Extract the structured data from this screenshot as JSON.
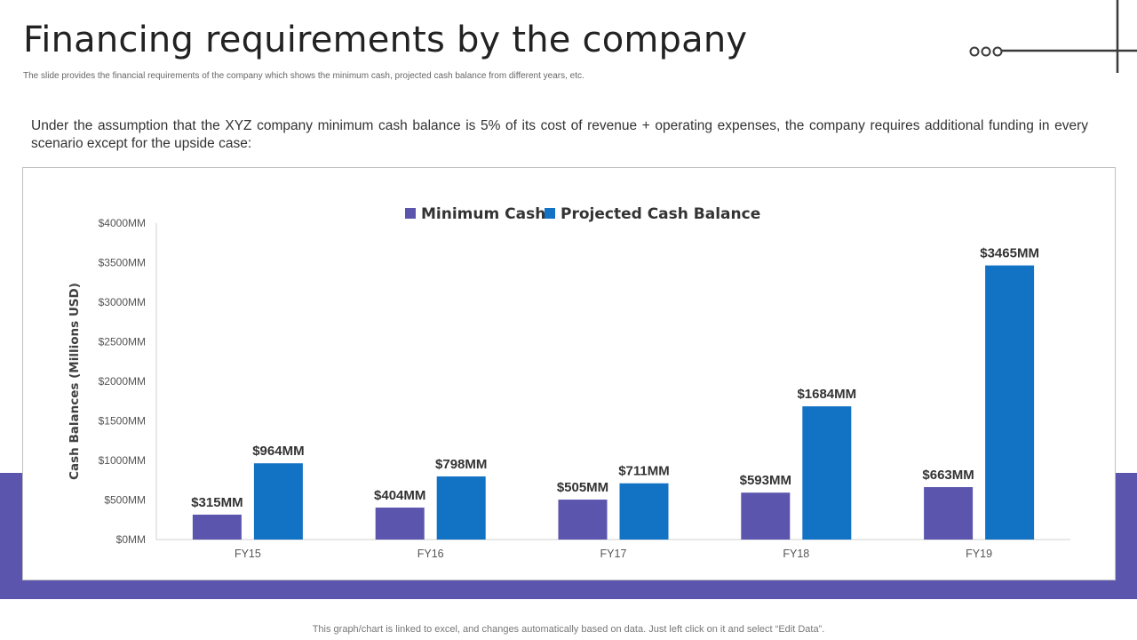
{
  "slide": {
    "title": "Financing requirements by the company",
    "subtitle": "The slide provides the financial requirements of the company which shows the minimum  cash, projected cash balance from different years, etc.",
    "intro": "Under the assumption that the XYZ company minimum cash balance is 5% of its cost of revenue + operating expenses, the company requires additional funding in every scenario except for the upside case:",
    "footer": "This graph/chart is linked to excel,  and changes automatically based on data. Just left click on it and select “Edit Data”."
  },
  "colors": {
    "minimum_cash": "#5b55ad",
    "projected_cash_balance": "#1272c4",
    "band": "#5b55ad"
  },
  "chart_data": {
    "type": "bar",
    "categories": [
      "FY15",
      "FY16",
      "FY17",
      "FY18",
      "FY19"
    ],
    "series": [
      {
        "name": "Minimum Cash",
        "values": [
          315,
          404,
          505,
          593,
          663
        ],
        "labels": [
          "$315MM",
          "$404MM",
          "$505MM",
          "$593MM",
          "$663MM"
        ]
      },
      {
        "name": "Projected Cash Balance",
        "values": [
          964,
          798,
          711,
          1684,
          3465
        ],
        "labels": [
          "$964MM",
          "$798MM",
          "$711MM",
          "$1684MM",
          "$3465MM"
        ]
      }
    ],
    "ylabel": "Cash Balances (Millions USD)",
    "ylim": [
      0,
      4000
    ],
    "yticks": [
      0,
      500,
      1000,
      1500,
      2000,
      2500,
      3000,
      3500,
      4000
    ],
    "ytick_labels": [
      "$0MM",
      "$500MM",
      "$1000MM",
      "$1500MM",
      "$2000MM",
      "$2500MM",
      "$3000MM",
      "$3500MM",
      "$4000MM"
    ],
    "legend": "top-center",
    "grid": false
  }
}
